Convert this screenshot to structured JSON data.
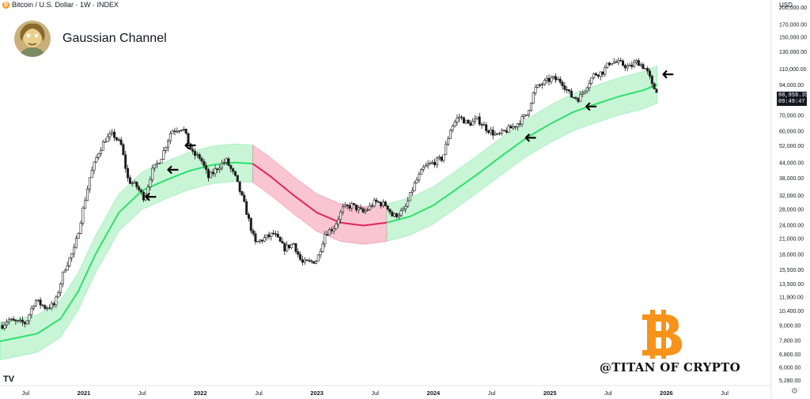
{
  "header": {
    "symbol_line": "Bitcoin / U.S. Dollar · 1W · INDEX",
    "title": "Gaussian Channel",
    "currency": "USD"
  },
  "price_tag": {
    "price": "88,958.35",
    "countdown": "09:49:47"
  },
  "watermark": "@TITAN OF CRYPTO",
  "tv_logo": "TV",
  "settings_icon": "gear-icon",
  "colors": {
    "bull_fill": "#c8f5d6",
    "bull_line": "#2ee06a",
    "bear_fill": "#f9c5d1",
    "bear_line": "#e0245e",
    "candle": "#1c1c1c",
    "bitcoin_orange": "#f7931a"
  },
  "chart_data": {
    "type": "candlestick-with-channel",
    "title": "Gaussian Channel",
    "yscale": "log",
    "ylim": [
      5000,
      205000
    ],
    "y_ticks": [
      "200,000.00",
      "170,000.00",
      "150,000.00",
      "130,000.00",
      "110,000.00",
      "94,000.00",
      "70,000.00",
      "60,000.00",
      "52,000.00",
      "44,000.00",
      "38,000.00",
      "32,000.00",
      "28,000.00",
      "24,000.00",
      "21,000.00",
      "18,000.00",
      "15,500.00",
      "13,500.00",
      "11,900.00",
      "10,400.00",
      "9,000.00",
      "7,800.00",
      "6,800.00",
      "6,000.00",
      "5,280.00"
    ],
    "x_ticks": [
      "Jul",
      "2021",
      "Jul",
      "2022",
      "Jul",
      "2023",
      "Jul",
      "2024",
      "Jul",
      "2025",
      "Jul",
      "2026",
      "Jul"
    ],
    "x_tick_years": [
      2020.5,
      2021.0,
      2021.5,
      2022.0,
      2022.5,
      2023.0,
      2023.5,
      2024.0,
      2024.5,
      2025.0,
      2025.5,
      2026.0,
      2026.5
    ],
    "xlim": [
      2020.28,
      2026.9
    ],
    "last_price": 88958.35,
    "price_anchors": [
      [
        2020.3,
        9000
      ],
      [
        2020.35,
        9500
      ],
      [
        2020.4,
        9300
      ],
      [
        2020.5,
        9200
      ],
      [
        2020.58,
        11500
      ],
      [
        2020.67,
        10700
      ],
      [
        2020.75,
        11000
      ],
      [
        2020.83,
        15500
      ],
      [
        2020.92,
        19000
      ],
      [
        2021.0,
        29000
      ],
      [
        2021.05,
        38000
      ],
      [
        2021.12,
        48000
      ],
      [
        2021.18,
        55000
      ],
      [
        2021.25,
        58000
      ],
      [
        2021.32,
        52000
      ],
      [
        2021.38,
        37000
      ],
      [
        2021.45,
        35000
      ],
      [
        2021.52,
        31000
      ],
      [
        2021.58,
        40000
      ],
      [
        2021.67,
        47000
      ],
      [
        2021.75,
        60000
      ],
      [
        2021.85,
        62000
      ],
      [
        2021.93,
        48000
      ],
      [
        2022.0,
        46000
      ],
      [
        2022.07,
        38000
      ],
      [
        2022.15,
        42000
      ],
      [
        2022.22,
        45000
      ],
      [
        2022.3,
        38000
      ],
      [
        2022.38,
        29000
      ],
      [
        2022.47,
        20000
      ],
      [
        2022.55,
        21000
      ],
      [
        2022.63,
        22000
      ],
      [
        2022.72,
        19000
      ],
      [
        2022.8,
        20000
      ],
      [
        2022.87,
        16500
      ],
      [
        2022.95,
        16700
      ],
      [
        2023.0,
        17000
      ],
      [
        2023.07,
        22000
      ],
      [
        2023.15,
        23500
      ],
      [
        2023.22,
        28000
      ],
      [
        2023.3,
        29000
      ],
      [
        2023.4,
        27000
      ],
      [
        2023.5,
        30000
      ],
      [
        2023.6,
        29000
      ],
      [
        2023.65,
        26000
      ],
      [
        2023.75,
        27500
      ],
      [
        2023.83,
        35000
      ],
      [
        2023.92,
        42000
      ],
      [
        2024.0,
        44000
      ],
      [
        2024.08,
        46000
      ],
      [
        2024.15,
        62000
      ],
      [
        2024.22,
        69000
      ],
      [
        2024.3,
        64000
      ],
      [
        2024.38,
        67000
      ],
      [
        2024.46,
        61000
      ],
      [
        2024.55,
        57000
      ],
      [
        2024.62,
        60000
      ],
      [
        2024.7,
        63000
      ],
      [
        2024.8,
        70000
      ],
      [
        2024.87,
        90000
      ],
      [
        2024.95,
        96000
      ],
      [
        2025.02,
        100000
      ],
      [
        2025.1,
        97000
      ],
      [
        2025.18,
        84000
      ],
      [
        2025.25,
        82000
      ],
      [
        2025.32,
        94000
      ],
      [
        2025.38,
        104000
      ],
      [
        2025.45,
        106000
      ],
      [
        2025.52,
        118000
      ],
      [
        2025.6,
        116000
      ],
      [
        2025.68,
        111000
      ],
      [
        2025.75,
        118000
      ],
      [
        2025.82,
        110000
      ],
      [
        2025.85,
        103000
      ],
      [
        2025.88,
        92000
      ],
      [
        2025.92,
        88958
      ]
    ],
    "channel": {
      "mid_anchors": [
        [
          2020.28,
          7700
        ],
        [
          2020.6,
          8300
        ],
        [
          2020.8,
          9600
        ],
        [
          2020.95,
          12500
        ],
        [
          2021.1,
          18000
        ],
        [
          2021.3,
          27000
        ],
        [
          2021.5,
          33500
        ],
        [
          2021.7,
          37000
        ],
        [
          2021.9,
          40500
        ],
        [
          2022.1,
          43000
        ],
        [
          2022.3,
          44000
        ],
        [
          2022.45,
          43500
        ],
        [
          2022.6,
          38500
        ],
        [
          2022.8,
          32000
        ],
        [
          2023.0,
          27000
        ],
        [
          2023.2,
          24500
        ],
        [
          2023.4,
          23800
        ],
        [
          2023.6,
          24500
        ],
        [
          2023.8,
          26000
        ],
        [
          2024.0,
          29000
        ],
        [
          2024.2,
          34000
        ],
        [
          2024.4,
          40000
        ],
        [
          2024.6,
          47500
        ],
        [
          2024.8,
          56000
        ],
        [
          2025.0,
          64000
        ],
        [
          2025.2,
          72000
        ],
        [
          2025.4,
          78000
        ],
        [
          2025.6,
          84000
        ],
        [
          2025.8,
          89000
        ],
        [
          2025.92,
          94000
        ]
      ],
      "band_ratio": 1.2,
      "bear_range": [
        2022.45,
        2023.6
      ]
    },
    "arrows": [
      {
        "date": 2021.56,
        "price": 31500
      },
      {
        "date": 2021.75,
        "price": 41000
      },
      {
        "date": 2021.9,
        "price": 52000
      },
      {
        "date": 2024.82,
        "price": 56000
      },
      {
        "date": 2025.34,
        "price": 76000
      },
      {
        "date": 2026.0,
        "price": 104000
      }
    ]
  }
}
